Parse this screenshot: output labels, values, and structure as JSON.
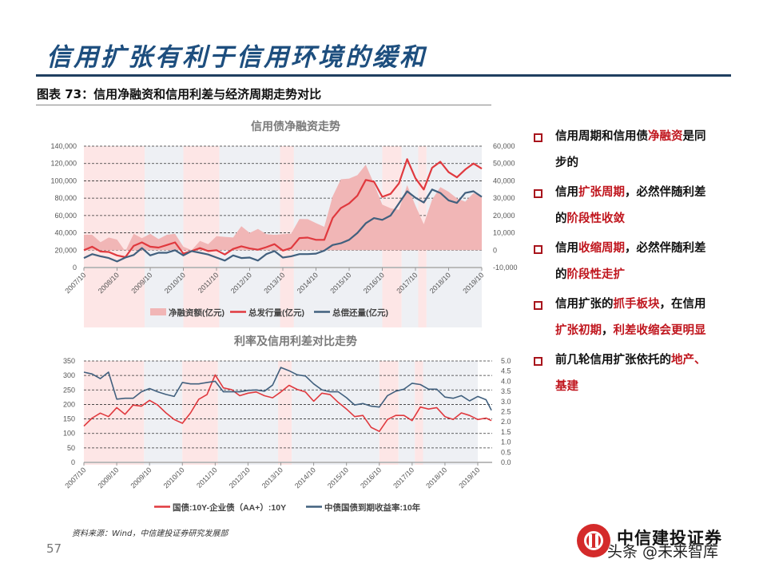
{
  "slide": {
    "title": "信用扩张有利于信用环境的缓和",
    "figure_label": "图表 73：信用净融资和信用利差与经济周期走势对比",
    "source": "资料来源：Wind，中信建投证券研究发展部",
    "page_number": "57",
    "logo_text": "中信建投证券",
    "watermark": "头条 @未来智库"
  },
  "colors": {
    "title_blue": "#1d4e7e",
    "highlight_red": "#c0161e",
    "series_red": "#e0393e",
    "series_blue": "#41607e",
    "area_pink": "#f1b6b6",
    "band_expansion": "#fde6e6",
    "band_contraction": "#eef0f4"
  },
  "bullets": [
    {
      "segments": [
        {
          "text": "信用周期和信用债",
          "hl": false
        },
        {
          "text": "净融资",
          "hl": true
        },
        {
          "text": "是同步的",
          "hl": false
        }
      ]
    },
    {
      "segments": [
        {
          "text": "信用",
          "hl": false
        },
        {
          "text": "扩张周期",
          "hl": true
        },
        {
          "text": "，必然伴随利差的",
          "hl": false
        },
        {
          "text": "阶段性收敛",
          "hl": true
        }
      ]
    },
    {
      "segments": [
        {
          "text": "信用",
          "hl": false
        },
        {
          "text": "收缩周期",
          "hl": true
        },
        {
          "text": "，必然伴随利差的",
          "hl": false
        },
        {
          "text": "阶段性走扩",
          "hl": true
        }
      ]
    },
    {
      "segments": [
        {
          "text": "信用扩张的",
          "hl": false
        },
        {
          "text": "抓手板块",
          "hl": true
        },
        {
          "text": "，在信用",
          "hl": false
        },
        {
          "text": "扩张初期",
          "hl": true
        },
        {
          "text": "，",
          "hl": false
        },
        {
          "text": "利差收缩会更明显",
          "hl": true
        }
      ]
    },
    {
      "segments": [
        {
          "text": "前几轮信用扩张依托的",
          "hl": false
        },
        {
          "text": "地产、基建",
          "hl": true
        }
      ]
    }
  ],
  "chart_data": [
    {
      "type": "area+line",
      "title": "信用债净融资走势",
      "x_tick_labels": [
        "2007/10",
        "2008/10",
        "2009/10",
        "2010/10",
        "2011/10",
        "2012/10",
        "2013/10",
        "2014/10",
        "2015/10",
        "2016/10",
        "2017/10",
        "2018/10",
        "2019/10"
      ],
      "y_left": {
        "range": [
          0,
          140000
        ],
        "ticks": [
          "0",
          "20,000",
          "40,000",
          "60,000",
          "80,000",
          "100,000",
          "120,000",
          "140,000"
        ]
      },
      "y_right": {
        "range": [
          -10000,
          60000
        ],
        "ticks": [
          "-10,000",
          "0",
          "10,000",
          "20,000",
          "30,000",
          "40,000",
          "50,000",
          "60,000"
        ]
      },
      "grid": "horizontal dashed",
      "legend_position": "bottom",
      "shaded_periods": [
        {
          "from": "2007-10",
          "to": "2009-08",
          "kind": "expansion"
        },
        {
          "from": "2009-08",
          "to": "2010-10",
          "kind": "contraction"
        },
        {
          "from": "2010-10",
          "to": "2011-11",
          "kind": "expansion"
        },
        {
          "from": "2011-11",
          "to": "2013-09",
          "kind": "contraction"
        },
        {
          "from": "2013-09",
          "to": "2014-02",
          "kind": "expansion"
        },
        {
          "from": "2014-02",
          "to": "2016-10",
          "kind": "contraction"
        },
        {
          "from": "2016-10",
          "to": "2017-05",
          "kind": "expansion"
        },
        {
          "from": "2017-05",
          "to": "2017-11",
          "kind": "contraction"
        },
        {
          "from": "2017-11",
          "to": "2018-02",
          "kind": "expansion"
        },
        {
          "from": "2018-02",
          "to": "2019-10",
          "kind": "contraction"
        }
      ],
      "x": [
        "2007-10",
        "2008-01",
        "2008-04",
        "2008-07",
        "2008-10",
        "2009-01",
        "2009-04",
        "2009-07",
        "2009-10",
        "2010-01",
        "2010-04",
        "2010-07",
        "2010-10",
        "2011-01",
        "2011-04",
        "2011-07",
        "2011-10",
        "2012-01",
        "2012-04",
        "2012-07",
        "2012-10",
        "2013-01",
        "2013-04",
        "2013-07",
        "2013-10",
        "2014-01",
        "2014-04",
        "2014-07",
        "2014-10",
        "2015-01",
        "2015-04",
        "2015-07",
        "2015-10",
        "2016-01",
        "2016-04",
        "2016-07",
        "2016-10",
        "2017-01",
        "2017-04",
        "2017-07",
        "2017-10",
        "2018-01",
        "2018-04",
        "2018-07",
        "2018-10",
        "2019-01",
        "2019-04",
        "2019-07",
        "2019-10"
      ],
      "series": [
        {
          "name": "净融资额(亿元)",
          "type": "area",
          "axis": "right",
          "color": "#f1b6b6",
          "values": [
            8900,
            8900,
            4600,
            7300,
            6100,
            -700,
            9500,
            6900,
            9500,
            6400,
            8900,
            9500,
            2000,
            0,
            5400,
            3500,
            8100,
            7700,
            7300,
            13800,
            10000,
            12300,
            9200,
            8900,
            9200,
            9500,
            18000,
            17900,
            15600,
            13500,
            31000,
            40900,
            41300,
            43300,
            49300,
            38300,
            26300,
            24200,
            23300,
            37500,
            25700,
            15000,
            29100,
            36400,
            33700,
            29900,
            28000,
            32900,
            31000
          ]
        },
        {
          "name": "总发行量(亿元)",
          "type": "line",
          "axis": "left",
          "color": "#e0393e",
          "values": [
            20000,
            24000,
            18500,
            18000,
            14000,
            12000,
            25000,
            29000,
            24000,
            23000,
            26000,
            29000,
            16000,
            19000,
            22500,
            19000,
            20000,
            15000,
            21500,
            24500,
            22000,
            20500,
            23500,
            27000,
            19500,
            22500,
            34000,
            34500,
            32000,
            32000,
            57000,
            68500,
            74000,
            83000,
            101000,
            99000,
            81500,
            85000,
            97000,
            125000,
            103000,
            90000,
            115000,
            122000,
            110000,
            104000,
            113000,
            120000,
            114000
          ]
        },
        {
          "name": "总偿还量(亿元)",
          "type": "line",
          "axis": "left",
          "color": "#41607e",
          "values": [
            11000,
            15500,
            13000,
            11000,
            7000,
            11500,
            14500,
            22500,
            14000,
            17000,
            17000,
            20000,
            14000,
            19000,
            17000,
            15000,
            11500,
            8000,
            14000,
            11000,
            11500,
            8000,
            15500,
            19000,
            11500,
            13000,
            15500,
            15500,
            16000,
            19500,
            26000,
            28000,
            32000,
            40000,
            51000,
            57000,
            55000,
            60000,
            74000,
            88000,
            80500,
            75000,
            90000,
            86000,
            77500,
            74500,
            86000,
            88000,
            81500
          ]
        }
      ]
    },
    {
      "type": "line",
      "title": "利率及信用利差对比走势",
      "x_tick_labels": [
        "2007/10",
        "2008/10",
        "2009/10",
        "2010/10",
        "2011/10",
        "2012/10",
        "2013/10",
        "2014/10",
        "2015/10",
        "2016/10",
        "2017/10",
        "2018/10",
        "2019/10"
      ],
      "y_left": {
        "range": [
          0,
          350
        ],
        "ticks": [
          "0",
          "50",
          "100",
          "150",
          "200",
          "250",
          "300",
          "350"
        ]
      },
      "y_right": {
        "range": [
          0,
          5
        ],
        "ticks": [
          "0.0",
          "0.5",
          "1.0",
          "1.5",
          "2.0",
          "2.5",
          "3.0",
          "3.5",
          "4.0",
          "4.5",
          "5.0"
        ]
      },
      "grid": "horizontal dashed",
      "legend_position": "bottom",
      "x": [
        "2007-10",
        "2008-01",
        "2008-04",
        "2008-07",
        "2008-10",
        "2009-01",
        "2009-04",
        "2009-07",
        "2009-10",
        "2010-01",
        "2010-04",
        "2010-07",
        "2010-10",
        "2011-01",
        "2011-04",
        "2011-07",
        "2011-10",
        "2012-01",
        "2012-04",
        "2012-07",
        "2012-10",
        "2013-01",
        "2013-04",
        "2013-07",
        "2013-10",
        "2014-01",
        "2014-04",
        "2014-07",
        "2014-10",
        "2015-01",
        "2015-04",
        "2015-07",
        "2015-10",
        "2016-01",
        "2016-04",
        "2016-07",
        "2016-10",
        "2017-01",
        "2017-04",
        "2017-07",
        "2017-10",
        "2018-01",
        "2018-04",
        "2018-07",
        "2018-10",
        "2019-01",
        "2019-04",
        "2019-07",
        "2019-10",
        "2020-01",
        "2020-03"
      ],
      "series": [
        {
          "name": "国债:10Y-企业债（AA+）:10Y",
          "axis": "left",
          "color": "#e0393e",
          "values": [
            125,
            153,
            170,
            158,
            189,
            166,
            198,
            194,
            214,
            198,
            171,
            148,
            135,
            171,
            218,
            234,
            302,
            257,
            251,
            230,
            239,
            243,
            230,
            223,
            243,
            266,
            252,
            243,
            211,
            239,
            234,
            207,
            184,
            158,
            162,
            121,
            107,
            148,
            162,
            162,
            144,
            191,
            184,
            189,
            158,
            148,
            171,
            162,
            148,
            153,
            144
          ]
        },
        {
          "name": "中债国债到期收益率:10年",
          "axis": "right",
          "color": "#41607e",
          "values": [
            4.45,
            4.36,
            4.13,
            4.45,
            3.12,
            3.16,
            3.16,
            3.48,
            3.64,
            3.48,
            3.35,
            3.25,
            3.94,
            3.87,
            3.87,
            3.94,
            4.0,
            3.48,
            3.48,
            3.48,
            3.55,
            3.57,
            3.51,
            3.81,
            4.68,
            4.52,
            4.32,
            4.26,
            3.87,
            3.58,
            3.48,
            3.48,
            3.19,
            2.83,
            2.9,
            2.77,
            2.73,
            3.29,
            3.51,
            3.61,
            3.9,
            3.84,
            3.61,
            3.61,
            3.22,
            3.16,
            3.29,
            3.03,
            3.25,
            3.09,
            2.57
          ]
        }
      ]
    }
  ]
}
